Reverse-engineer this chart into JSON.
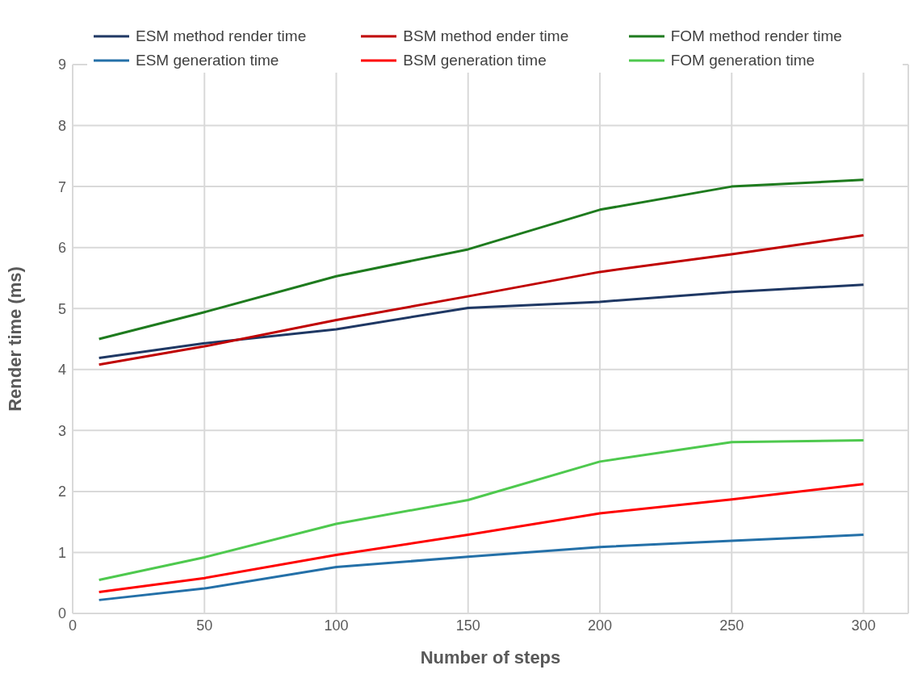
{
  "chart_data": {
    "type": "line",
    "xlabel": "Number of steps",
    "ylabel": "Render time (ms)",
    "x": [
      10,
      50,
      100,
      150,
      200,
      250,
      300
    ],
    "xlim": [
      0,
      317
    ],
    "xticks": [
      0,
      50,
      100,
      150,
      200,
      250,
      300
    ],
    "ylim": [
      0,
      9
    ],
    "yticks": [
      0,
      1,
      2,
      3,
      4,
      5,
      6,
      7,
      8,
      9
    ],
    "grid": true,
    "legend": "top",
    "marker": "none",
    "line_style": "solid",
    "series": [
      {
        "name": "ESM method render time",
        "color": "#1f3864",
        "values": [
          4.19,
          4.43,
          4.66,
          5.01,
          5.11,
          5.27,
          5.39
        ]
      },
      {
        "name": "BSM method ender time",
        "color": "#c00000",
        "values": [
          4.08,
          4.38,
          4.81,
          5.2,
          5.6,
          5.89,
          6.2
        ]
      },
      {
        "name": "FOM method render time",
        "color": "#1e7b1e",
        "values": [
          4.5,
          4.94,
          5.53,
          5.97,
          6.62,
          7.0,
          7.11
        ]
      },
      {
        "name": "ESM generation time",
        "color": "#2470a8",
        "values": [
          0.22,
          0.41,
          0.76,
          0.93,
          1.09,
          1.19,
          1.29
        ]
      },
      {
        "name": "BSM generation time",
        "color": "#ff0000",
        "values": [
          0.35,
          0.58,
          0.96,
          1.29,
          1.64,
          1.87,
          2.12
        ]
      },
      {
        "name": "FOM generation time",
        "color": "#4ec94e",
        "values": [
          0.55,
          0.92,
          1.47,
          1.86,
          2.49,
          2.81,
          2.84
        ]
      }
    ]
  }
}
